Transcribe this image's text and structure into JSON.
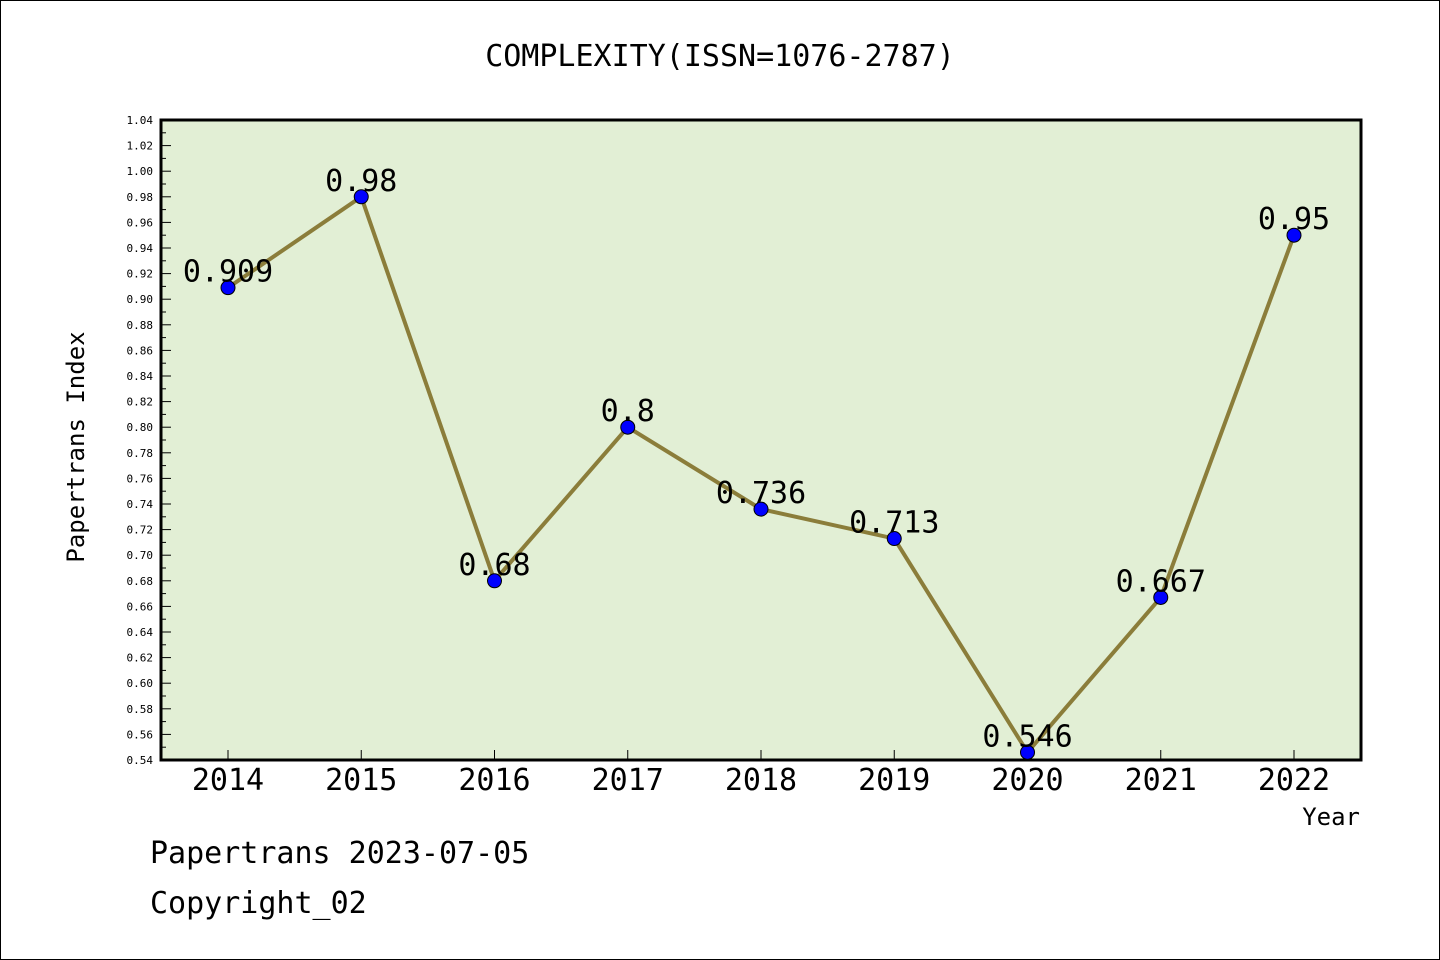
{
  "chart_data": {
    "type": "line",
    "title": "COMPLEXITY(ISSN=1076-2787)",
    "xlabel": "Year",
    "ylabel": "Papertrans Index",
    "categories": [
      "2014",
      "2015",
      "2016",
      "2017",
      "2018",
      "2019",
      "2020",
      "2021",
      "2022"
    ],
    "values": [
      0.909,
      0.98,
      0.68,
      0.8,
      0.736,
      0.713,
      0.546,
      0.667,
      0.95
    ],
    "data_labels": [
      "0.909",
      "0.98",
      "0.68",
      "0.8",
      "0.736",
      "0.713",
      "0.546",
      "0.667",
      "0.95"
    ],
    "ylim": [
      0.54,
      1.04
    ],
    "ytick_step": 0.02,
    "grid": false,
    "colors": {
      "plot_background": "#e2efd5",
      "line": "#8b7d3a",
      "marker": "#0000ff"
    }
  },
  "footer": {
    "line1": "Papertrans 2023-07-05",
    "line2": "Copyright_02"
  }
}
